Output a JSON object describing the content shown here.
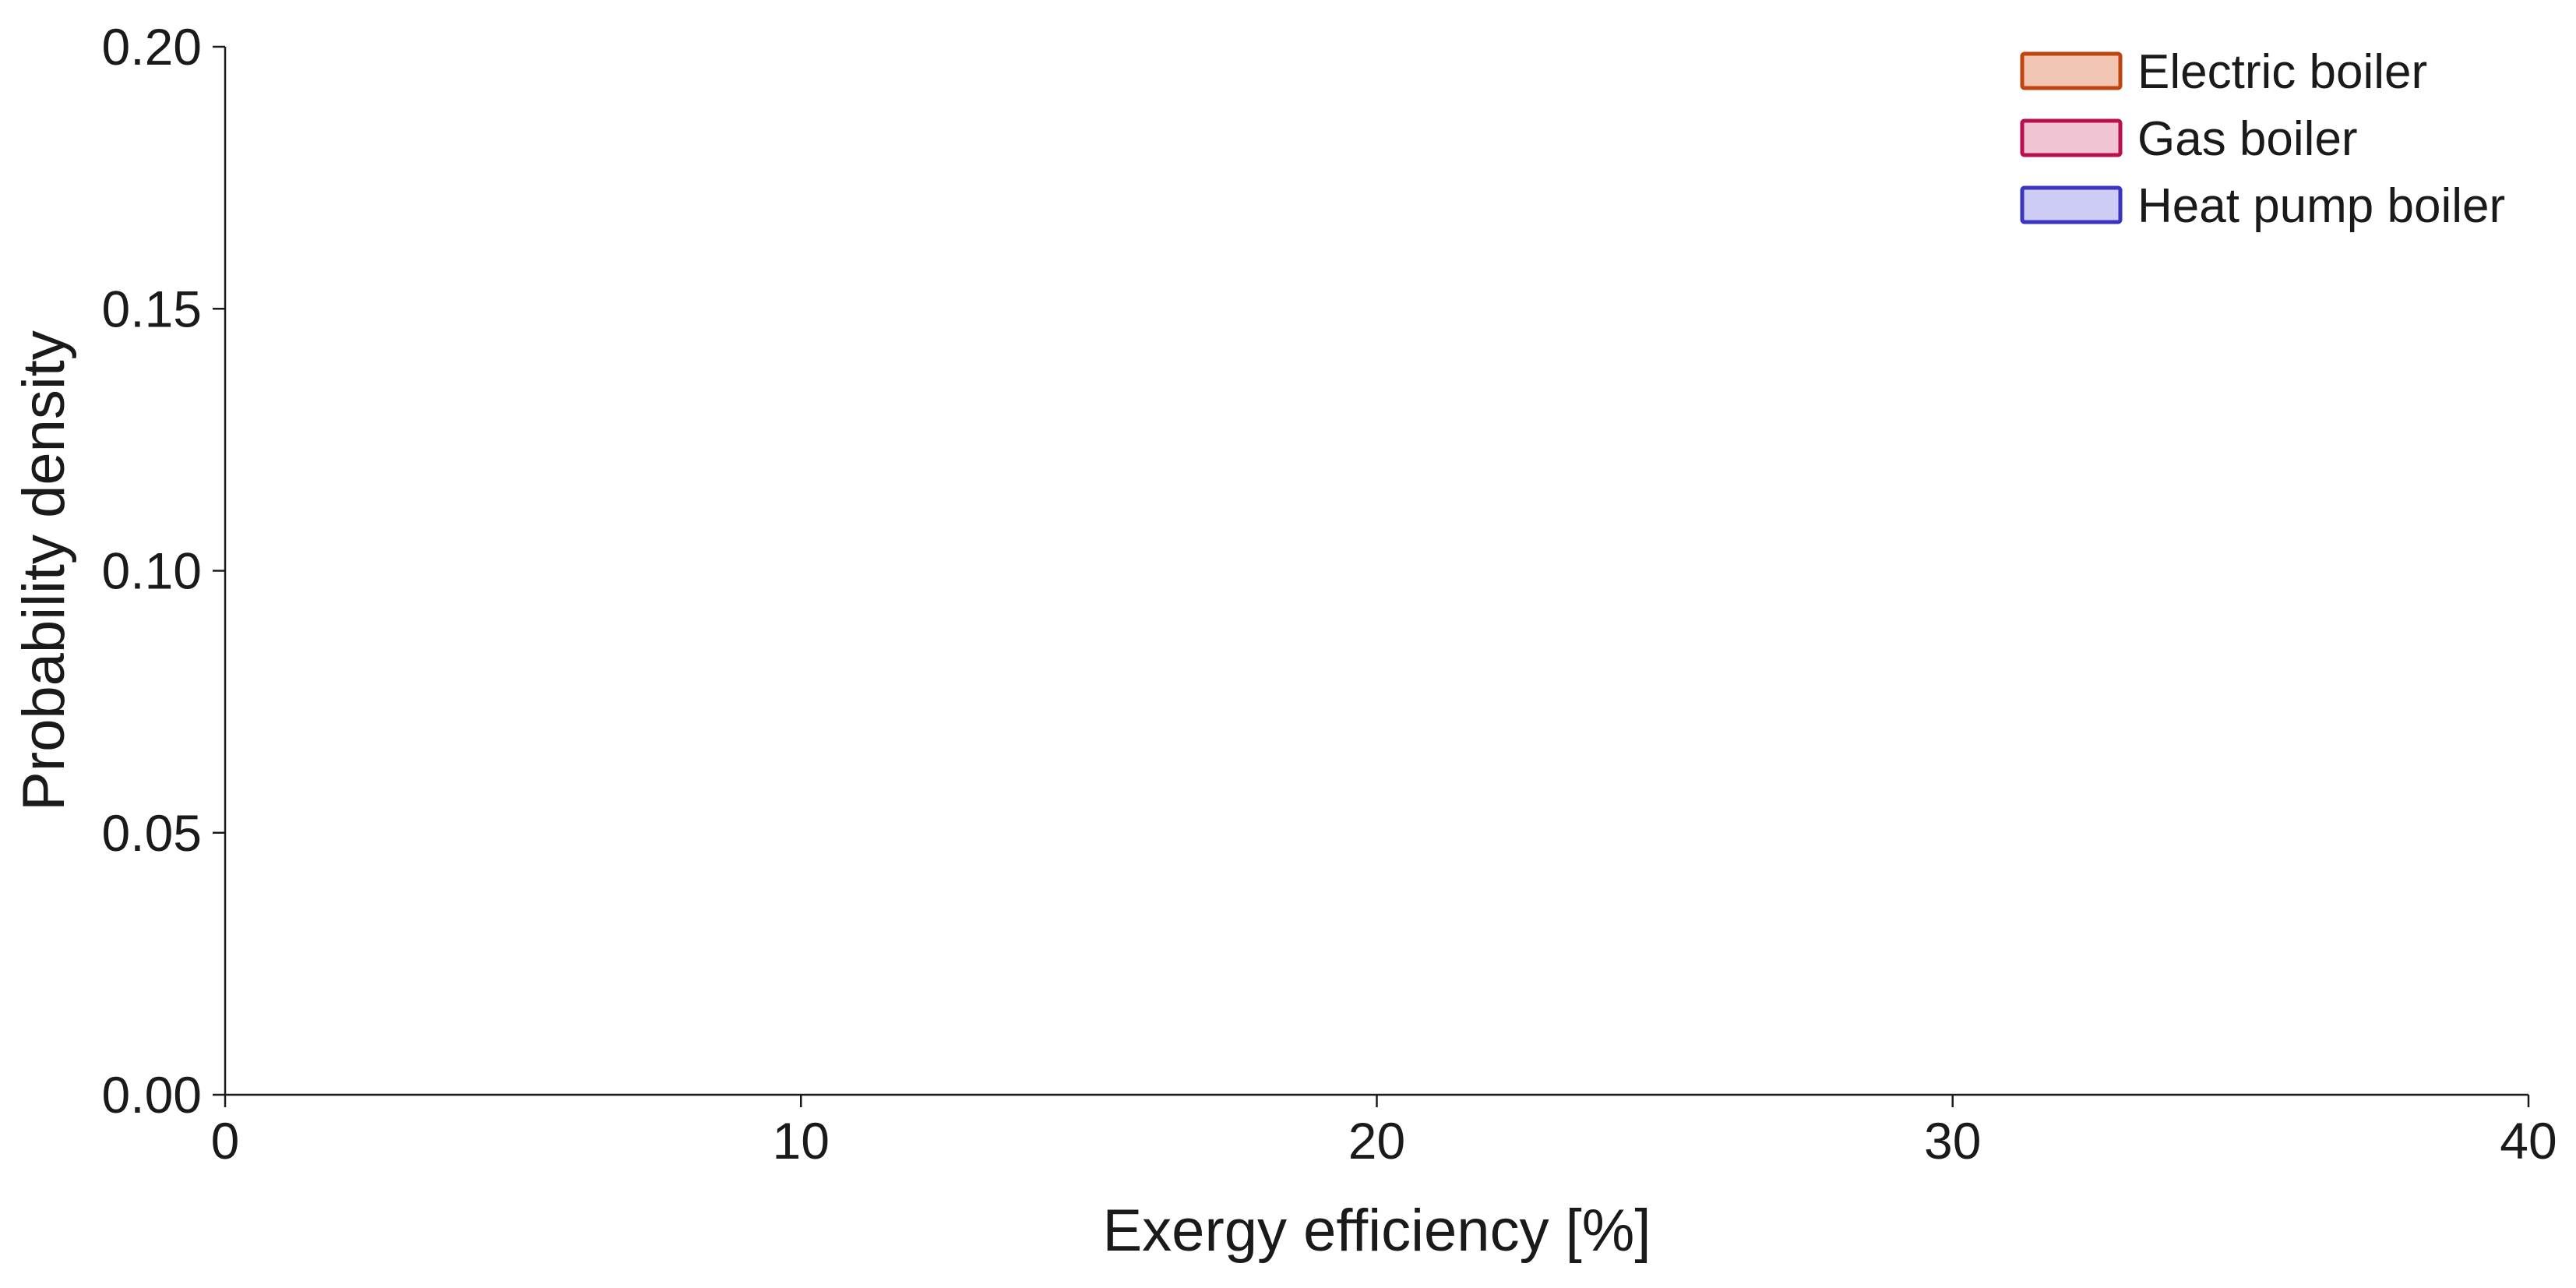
{
  "chart_data": {
    "type": "area",
    "title": "",
    "xlabel": "Exergy efficiency [%]",
    "ylabel": "Probability density",
    "xlim": [
      0,
      40
    ],
    "ylim": [
      0,
      0.2
    ],
    "x_ticks": [
      0,
      10,
      20,
      30,
      40
    ],
    "x_tick_labels": [
      "0",
      "10",
      "20",
      "30",
      "40"
    ],
    "y_ticks": [
      0,
      0.05,
      0.1,
      0.15,
      0.2
    ],
    "y_tick_labels": [
      "0.00",
      "0.05",
      "0.10",
      "0.15",
      "0.20"
    ],
    "grid": false,
    "legend_position": "top-right",
    "series": [
      {
        "name": "Electric boiler",
        "edge_color": "#c0440e",
        "fill_color": "#f3c6b4",
        "x": [],
        "y": []
      },
      {
        "name": "Gas boiler",
        "edge_color": "#b8104e",
        "fill_color": "#f1c4d3",
        "x": [],
        "y": []
      },
      {
        "name": "Heat pump boiler",
        "edge_color": "#3a34c0",
        "fill_color": "#cdccf4",
        "x": [],
        "y": []
      }
    ]
  }
}
